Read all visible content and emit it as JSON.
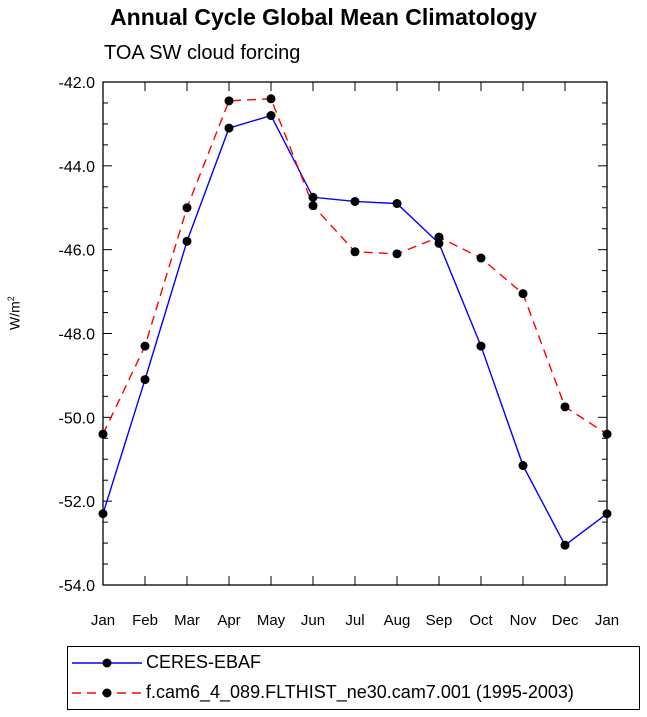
{
  "title": "Annual Cycle Global Mean Climatology",
  "subtitle": "TOA SW cloud forcing",
  "ylabel_base": "W/m",
  "ylabel_sup": "2",
  "chart_data": {
    "type": "line",
    "categories": [
      "Jan",
      "Feb",
      "Mar",
      "Apr",
      "May",
      "Jun",
      "Jul",
      "Aug",
      "Sep",
      "Oct",
      "Nov",
      "Dec",
      "Jan"
    ],
    "ylim": [
      -54.0,
      -42.0
    ],
    "yticks": [
      "-42.0",
      "-44.0",
      "-46.0",
      "-48.0",
      "-50.0",
      "-52.0",
      "-54.0"
    ],
    "ytick_values": [
      -42,
      -44,
      -46,
      -48,
      -50,
      -52,
      -54
    ],
    "series": [
      {
        "name": "CERES-EBAF",
        "color": "#0000ff",
        "dash": "solid",
        "values": [
          -52.3,
          -49.1,
          -45.8,
          -43.1,
          -42.8,
          -44.75,
          -44.85,
          -44.9,
          -45.85,
          -48.3,
          -51.15,
          -53.05,
          -52.3
        ]
      },
      {
        "name": "f.cam6_4_089.FLTHIST_ne30.cam7.001 (1995-2003)",
        "color": "#ff0000",
        "dash": "dashed",
        "values": [
          -50.4,
          -48.3,
          -45.0,
          -42.45,
          -42.4,
          -44.95,
          -46.05,
          -46.1,
          -45.7,
          -46.2,
          -47.05,
          -49.75,
          -50.4
        ]
      }
    ]
  }
}
